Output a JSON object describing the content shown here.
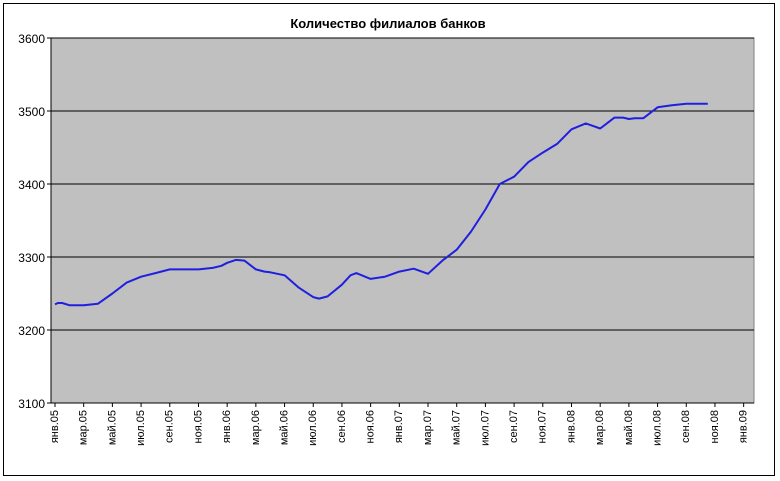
{
  "chart_data": {
    "type": "line",
    "title": "Количество филиалов банков",
    "xlabel": "",
    "ylabel": "",
    "ylim": [
      3100,
      3600
    ],
    "yticks": [
      3100,
      3200,
      3300,
      3400,
      3500,
      3600
    ],
    "grid": true,
    "legend": "none",
    "colors": {
      "line": "#1f1fe0",
      "plot_bg": "#c0c0c0",
      "grid": "#000000"
    },
    "categories": [
      "янв.05",
      "мар.05",
      "май.05",
      "июл.05",
      "сен.05",
      "ноя.05",
      "янв.06",
      "мар.06",
      "май.06",
      "июл.06",
      "сен.06",
      "ноя.06",
      "янв.07",
      "мар.07",
      "май.07",
      "июл.07",
      "сен.07",
      "ноя.07",
      "янв.08",
      "мар.08",
      "май.08",
      "июл.08",
      "сен.08",
      "ноя.08",
      "янв.09"
    ],
    "series": [
      {
        "x": [
          0,
          0.1,
          0.25,
          0.5,
          1,
          1.5,
          2,
          2.5,
          3,
          3.5,
          4,
          4.5,
          5,
          5.5,
          5.8,
          6,
          6.3,
          6.6,
          7,
          7.3,
          7.5,
          8,
          8.5,
          9,
          9.2,
          9.5,
          10,
          10.3,
          10.5,
          11,
          11.5,
          12,
          12.5,
          13,
          13.5,
          14,
          14.5,
          15,
          15.5,
          16,
          16.5,
          17,
          17.5,
          18,
          18.5,
          19,
          19.5,
          19.8,
          20,
          20.2,
          20.5,
          21,
          21.5,
          22,
          22.5,
          22.75
        ],
        "values": [
          3235,
          3237,
          3237,
          3234,
          3234,
          3236,
          3250,
          3265,
          3273,
          3278,
          3283,
          3283,
          3283,
          3285,
          3288,
          3292,
          3296,
          3295,
          3283,
          3280,
          3279,
          3275,
          3258,
          3245,
          3243,
          3246,
          3262,
          3275,
          3278,
          3270,
          3273,
          3280,
          3284,
          3277,
          3295,
          3310,
          3335,
          3365,
          3400,
          3410,
          3430,
          3443,
          3455,
          3475,
          3483,
          3476,
          3491,
          3491,
          3489,
          3490,
          3490,
          3505,
          3508,
          3510,
          3510,
          3510
        ]
      }
    ]
  }
}
